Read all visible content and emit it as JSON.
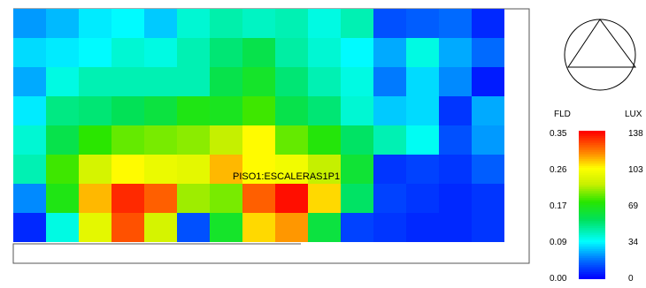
{
  "chart_data": {
    "type": "heatmap",
    "room_label": "PISO1:ESCALERAS1P1",
    "legend": {
      "left_header": "FLD",
      "right_header": "LUX",
      "fld_ticks": [
        "0.35",
        "0.26",
        "0.17",
        "0.09",
        "0.00"
      ],
      "lux_ticks": [
        "138",
        "103",
        "69",
        "34",
        "0"
      ],
      "lux_range": [
        0,
        138
      ],
      "fld_range": [
        0,
        0.35
      ],
      "gradient_colors": [
        "#ff0000",
        "#ff8000",
        "#ffff00",
        "#00e000",
        "#00ffff",
        "#0080ff",
        "#0000ff"
      ]
    },
    "grid_rows": 8,
    "grid_cols": 15,
    "lux_values": [
      [
        22,
        26,
        32,
        34,
        28,
        40,
        45,
        42,
        44,
        38,
        44,
        12,
        14,
        16,
        6
      ],
      [
        30,
        32,
        34,
        40,
        38,
        44,
        52,
        58,
        46,
        40,
        34,
        24,
        38,
        24,
        16
      ],
      [
        24,
        38,
        44,
        44,
        44,
        44,
        58,
        64,
        52,
        44,
        38,
        18,
        30,
        20,
        4
      ],
      [
        32,
        50,
        52,
        56,
        60,
        68,
        66,
        74,
        58,
        52,
        40,
        28,
        30,
        8,
        24
      ],
      [
        40,
        58,
        72,
        78,
        80,
        82,
        88,
        104,
        78,
        70,
        54,
        44,
        36,
        12,
        22
      ],
      [
        44,
        74,
        92,
        104,
        98,
        96,
        112,
        104,
        100,
        88,
        62,
        8,
        10,
        8,
        14
      ],
      [
        20,
        68,
        112,
        132,
        124,
        84,
        80,
        124,
        136,
        108,
        54,
        10,
        8,
        6,
        8
      ],
      [
        6,
        38,
        96,
        126,
        92,
        12,
        64,
        108,
        116,
        60,
        10,
        8,
        6,
        6,
        8
      ]
    ]
  }
}
